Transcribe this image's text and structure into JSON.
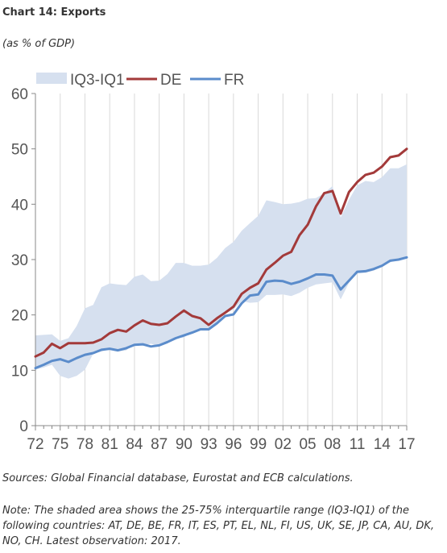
{
  "header": {
    "title": "Chart 14: Exports",
    "subtitle": "(as % of GDP)"
  },
  "footer": {
    "sources": "Sources: Global Financial database, Eurostat and ECB calculations.",
    "note": "Note: The shaded area shows the 25-75% interquartile range (IQ3-IQ1) of the following countries: AT, DE, BE, FR, IT, ES, PT, EL, NL, FI, US, UK, SE, JP, CA, AU, DK, NO, CH. Latest observation: 2017."
  },
  "colors": {
    "band": "#d6e0ef",
    "DE": "#a33a3a",
    "FR": "#5b8ccb",
    "grid": "#d9d9d9",
    "axis": "#888888"
  },
  "chart_data": {
    "type": "line",
    "title": "Chart 14: Exports",
    "subtitle": "(as % of GDP)",
    "xlabel": "",
    "ylabel": "",
    "ylim": [
      0,
      60
    ],
    "yticks": [
      "0",
      "10",
      "20",
      "30",
      "40",
      "50",
      "60"
    ],
    "xticks": [
      "72",
      "75",
      "78",
      "81",
      "84",
      "87",
      "90",
      "93",
      "96",
      "99",
      "02",
      "05",
      "08",
      "11",
      "14",
      "17"
    ],
    "xlim": [
      1972,
      2017
    ],
    "grid": "vertical",
    "legend_placement": "top-left",
    "x": [
      1972,
      1973,
      1974,
      1975,
      1976,
      1977,
      1978,
      1979,
      1980,
      1981,
      1982,
      1983,
      1984,
      1985,
      1986,
      1987,
      1988,
      1989,
      1990,
      1991,
      1992,
      1993,
      1994,
      1995,
      1996,
      1997,
      1998,
      1999,
      2000,
      2001,
      2002,
      2003,
      2004,
      2005,
      2006,
      2007,
      2008,
      2009,
      2010,
      2011,
      2012,
      2013,
      2014,
      2015,
      2016,
      2017
    ],
    "band": {
      "name": "IQ3-IQ1",
      "upper": [
        16.3,
        16.4,
        16.5,
        15.3,
        15.8,
        18.0,
        21.2,
        21.8,
        25.0,
        25.7,
        25.5,
        25.4,
        26.9,
        27.3,
        26.1,
        26.2,
        27.4,
        29.4,
        29.4,
        28.9,
        28.9,
        29.1,
        30.3,
        32.1,
        33.2,
        35.2,
        36.6,
        37.9,
        40.7,
        40.4,
        40.0,
        40.1,
        40.4,
        41.0,
        41.1,
        42.0,
        43.3,
        37.6,
        40.8,
        43.4,
        44.2,
        44.0,
        44.9,
        46.5,
        46.5,
        47.2
      ],
      "lower": [
        10.1,
        10.5,
        11.0,
        9.0,
        8.5,
        9.0,
        10.1,
        13.0,
        13.4,
        13.8,
        13.4,
        13.6,
        14.8,
        14.5,
        14.8,
        14.3,
        14.9,
        15.8,
        15.9,
        17.0,
        17.3,
        17.5,
        18.7,
        20.2,
        21.0,
        22.5,
        22.2,
        22.3,
        23.6,
        23.6,
        23.7,
        23.4,
        24.0,
        24.9,
        25.5,
        25.7,
        25.9,
        22.8,
        25.8,
        27.5,
        27.6,
        28.0,
        29.0,
        29.5,
        30.0,
        30.2
      ]
    },
    "series": [
      {
        "name": "DE",
        "values": [
          12.5,
          13.2,
          14.8,
          14.0,
          14.9,
          14.9,
          14.9,
          15.0,
          15.6,
          16.7,
          17.3,
          17.0,
          18.1,
          19.0,
          18.4,
          18.2,
          18.5,
          19.7,
          20.8,
          19.8,
          19.4,
          18.2,
          19.4,
          20.4,
          21.5,
          23.8,
          24.9,
          25.7,
          28.2,
          29.4,
          30.7,
          31.4,
          34.4,
          36.3,
          39.6,
          42.0,
          42.4,
          38.3,
          42.2,
          44.0,
          45.3,
          45.7,
          46.8,
          48.5,
          48.8,
          50.0
        ]
      },
      {
        "name": "FR",
        "values": [
          10.4,
          11.0,
          11.7,
          12.0,
          11.5,
          12.2,
          12.8,
          13.1,
          13.7,
          13.9,
          13.6,
          14.0,
          14.6,
          14.7,
          14.3,
          14.5,
          15.1,
          15.8,
          16.3,
          16.8,
          17.4,
          17.4,
          18.5,
          19.8,
          20.1,
          22.1,
          23.5,
          23.7,
          26.0,
          26.2,
          26.1,
          25.6,
          26.0,
          26.6,
          27.3,
          27.3,
          27.1,
          24.6,
          26.2,
          27.8,
          27.9,
          28.3,
          28.9,
          29.8,
          30.0,
          30.4
        ]
      }
    ]
  }
}
